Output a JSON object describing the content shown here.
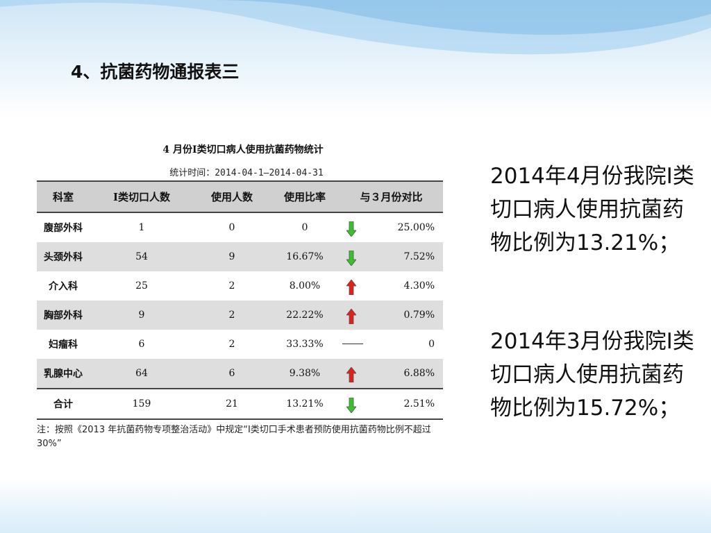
{
  "slide": {
    "title": "4、抗菌药物通报表三"
  },
  "table": {
    "title": "4 月份Ⅰ类切口病人使用抗菌药物统计",
    "period": "统计时间：2014-04-1—2014-04-31",
    "headers": [
      "科室",
      "Ⅰ类切口人数",
      "使用人数",
      "使用比率",
      "与３月份对比"
    ],
    "rows": [
      {
        "dept": "腹部外科",
        "count": "1",
        "used": "0",
        "rate": "0",
        "trend": "down",
        "change": "25.00%"
      },
      {
        "dept": "头颈外科",
        "count": "54",
        "used": "9",
        "rate": "16.67%",
        "trend": "down",
        "change": "7.52%"
      },
      {
        "dept": "介入科",
        "count": "25",
        "used": "2",
        "rate": "8.00%",
        "trend": "up",
        "change": "4.30%"
      },
      {
        "dept": "胸部外科",
        "count": "9",
        "used": "2",
        "rate": "22.22%",
        "trend": "up",
        "change": "0.79%"
      },
      {
        "dept": "妇瘤科",
        "count": "6",
        "used": "2",
        "rate": "33.33%",
        "trend": "flat",
        "change": "0"
      },
      {
        "dept": "乳腺中心",
        "count": "64",
        "used": "6",
        "rate": "9.38%",
        "trend": "up",
        "change": "6.88%"
      },
      {
        "dept": "合计",
        "count": "159",
        "used": "21",
        "rate": "13.21%",
        "trend": "down",
        "change": "2.51%"
      }
    ],
    "note": "注：按照《2013 年抗菌药物专项整治活动》中规定“Ⅰ类切口手术患者预防使用抗菌药物比例不超过 30%”"
  },
  "colors": {
    "up": "#e0201c",
    "down": "#37c22a",
    "header_bg": "#d0d0d0",
    "row_shade": "#dedede"
  },
  "summary": {
    "april": "2014年4月份我院Ⅰ类切口病人使用抗菌药物比例为13.21%；",
    "march": "2014年3月份我院Ⅰ类切口病人使用抗菌药物比例为15.72%；"
  }
}
